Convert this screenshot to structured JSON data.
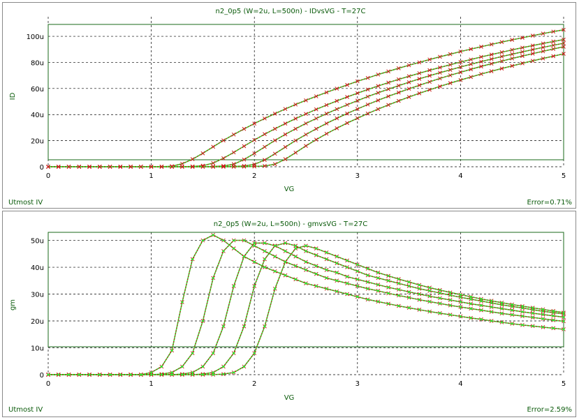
{
  "footer_model": "Utmost IV",
  "chart_data": [
    {
      "type": "line",
      "title": "n2_0p5 (W=2u, L=500n) - IDvsVG - T=27C",
      "xlabel": "VG",
      "ylabel": "ID",
      "xlim": [
        0,
        5
      ],
      "ylim": [
        0,
        0.000115
      ],
      "xticks": [
        0,
        1,
        2,
        3,
        4,
        5
      ],
      "xtick_labels": [
        "0",
        "1",
        "2",
        "3",
        "4",
        "5"
      ],
      "yticks": [
        0,
        2e-05,
        4e-05,
        6e-05,
        8e-05,
        0.0001
      ],
      "ytick_labels": [
        "0",
        "20u",
        "40u",
        "60u",
        "80u",
        "100u"
      ],
      "grid": true,
      "error_text": "Error=0.71%",
      "x": [
        0,
        0.1,
        0.2,
        0.3,
        0.4,
        0.5,
        0.6,
        0.7,
        0.8,
        0.9,
        1.0,
        1.1,
        1.2,
        1.3,
        1.4,
        1.5,
        1.6,
        1.7,
        1.8,
        1.9,
        2.0,
        2.1,
        2.2,
        2.3,
        2.4,
        2.5,
        2.6,
        2.7,
        2.8,
        2.9,
        3.0,
        3.1,
        3.2,
        3.3,
        3.4,
        3.5,
        3.6,
        3.7,
        3.8,
        3.9,
        4.0,
        4.1,
        4.2,
        4.3,
        4.4,
        4.5,
        4.6,
        4.7,
        4.8,
        4.9,
        5.0
      ],
      "series": [
        {
          "values": [
            0,
            0,
            0,
            0,
            0,
            0,
            0,
            0,
            0,
            0,
            0,
            8e-08,
            4e-07,
            2.3e-06,
            5.8e-06,
            1.03e-05,
            1.53e-05,
            2.02e-05,
            2.47e-05,
            2.9e-05,
            3.31e-05,
            3.7e-05,
            4.07e-05,
            4.43e-05,
            4.77e-05,
            5.09e-05,
            5.4e-05,
            5.7e-05,
            5.99e-05,
            6.27e-05,
            6.55e-05,
            6.81e-05,
            7.07e-05,
            7.31e-05,
            7.55e-05,
            7.78e-05,
            8e-05,
            8.22e-05,
            8.43e-05,
            8.63e-05,
            8.83e-05,
            9.02e-05,
            9.2e-05,
            9.38e-05,
            9.56e-05,
            9.73e-05,
            9.89e-05,
            0.0001005,
            0.0001021,
            0.0001036,
            0.000105
          ]
        },
        {
          "values": [
            0,
            0,
            0,
            0,
            0,
            0,
            0,
            0,
            0,
            0,
            0,
            0,
            0,
            5e-08,
            2e-07,
            8e-07,
            2.8e-06,
            6.5e-06,
            1.1e-05,
            1.58e-05,
            2.05e-05,
            2.5e-05,
            2.91e-05,
            3.31e-05,
            3.69e-05,
            4.05e-05,
            4.4e-05,
            4.73e-05,
            5.05e-05,
            5.35e-05,
            5.64e-05,
            5.92e-05,
            6.19e-05,
            6.45e-05,
            6.7e-05,
            6.94e-05,
            7.17e-05,
            7.4e-05,
            7.61e-05,
            7.82e-05,
            8.03e-05,
            8.22e-05,
            8.42e-05,
            8.6e-05,
            8.78e-05,
            8.96e-05,
            9.13e-05,
            9.29e-05,
            9.45e-05,
            9.6e-05,
            9.75e-05
          ]
        },
        {
          "values": [
            0,
            0,
            0,
            0,
            0,
            0,
            0,
            0,
            0,
            0,
            0,
            0,
            0,
            0,
            0,
            5e-08,
            2e-07,
            6e-07,
            2e-06,
            5.5e-06,
            1.02e-05,
            1.52e-05,
            2.02e-05,
            2.48e-05,
            2.91e-05,
            3.32e-05,
            3.7e-05,
            4.07e-05,
            4.42e-05,
            4.75e-05,
            5.07e-05,
            5.38e-05,
            5.67e-05,
            5.95e-05,
            6.22e-05,
            6.48e-05,
            6.74e-05,
            6.98e-05,
            7.21e-05,
            7.43e-05,
            7.65e-05,
            7.86e-05,
            8.06e-05,
            8.26e-05,
            8.45e-05,
            8.63e-05,
            8.81e-05,
            8.98e-05,
            9.15e-05,
            9.31e-05,
            9.47e-05
          ]
        },
        {
          "values": [
            0,
            0,
            0,
            0,
            0,
            0,
            0,
            0,
            0,
            0,
            0,
            0,
            0,
            0,
            0,
            0,
            0,
            5e-08,
            2e-07,
            6e-07,
            1.8e-06,
            5.2e-06,
            1e-05,
            1.51e-05,
            2.01e-05,
            2.47e-05,
            2.91e-05,
            3.32e-05,
            3.71e-05,
            4.08e-05,
            4.43e-05,
            4.77e-05,
            5.09e-05,
            5.4e-05,
            5.69e-05,
            5.98e-05,
            6.25e-05,
            6.51e-05,
            6.77e-05,
            7.01e-05,
            7.24e-05,
            7.47e-05,
            7.69e-05,
            7.9e-05,
            8.1e-05,
            8.3e-05,
            8.49e-05,
            8.67e-05,
            8.85e-05,
            9.03e-05,
            9.2e-05
          ]
        },
        {
          "values": [
            0,
            0,
            0,
            0,
            0,
            0,
            0,
            0,
            0,
            0,
            0,
            0,
            0,
            0,
            0,
            0,
            0,
            0,
            0,
            5e-08,
            2e-07,
            6e-07,
            2e-06,
            5.8e-06,
            1.08e-05,
            1.6e-05,
            2.08e-05,
            2.53e-05,
            2.95e-05,
            3.35e-05,
            3.72e-05,
            4.08e-05,
            4.42e-05,
            4.74e-05,
            5.05e-05,
            5.35e-05,
            5.63e-05,
            5.9e-05,
            6.16e-05,
            6.41e-05,
            6.65e-05,
            6.88e-05,
            7.11e-05,
            7.32e-05,
            7.53e-05,
            7.73e-05,
            7.93e-05,
            8.12e-05,
            8.3e-05,
            8.48e-05,
            8.66e-05
          ]
        }
      ]
    },
    {
      "type": "line",
      "title": "n2_0p5 (W=2u, L=500n) - gmvsVG - T=27C",
      "xlabel": "VG",
      "ylabel": "gm",
      "xlim": [
        0,
        5
      ],
      "ylim": [
        0,
        5.3e-05
      ],
      "xticks": [
        0,
        1,
        2,
        3,
        4,
        5
      ],
      "xtick_labels": [
        "0",
        "1",
        "2",
        "3",
        "4",
        "5"
      ],
      "yticks": [
        0,
        1e-05,
        2e-05,
        3e-05,
        4e-05,
        5e-05
      ],
      "ytick_labels": [
        "0",
        "10u",
        "20u",
        "30u",
        "40u",
        "50u"
      ],
      "grid": true,
      "error_text": "Error=2.59%",
      "x": [
        0,
        0.1,
        0.2,
        0.3,
        0.4,
        0.5,
        0.6,
        0.7,
        0.8,
        0.9,
        1.0,
        1.1,
        1.2,
        1.3,
        1.4,
        1.5,
        1.6,
        1.7,
        1.8,
        1.9,
        2.0,
        2.1,
        2.2,
        2.3,
        2.4,
        2.5,
        2.6,
        2.7,
        2.8,
        2.9,
        3.0,
        3.1,
        3.2,
        3.3,
        3.4,
        3.5,
        3.6,
        3.7,
        3.8,
        3.9,
        4.0,
        4.1,
        4.2,
        4.3,
        4.4,
        4.5,
        4.6,
        4.7,
        4.8,
        4.9,
        5.0
      ],
      "series": [
        {
          "values": [
            0,
            0,
            0,
            0,
            0,
            0,
            0,
            0,
            0,
            0,
            8e-07,
            3e-06,
            9e-06,
            2.7e-05,
            4.3e-05,
            5e-05,
            5.2e-05,
            5e-05,
            4.7e-05,
            4.4e-05,
            4.2e-05,
            4e-05,
            3.85e-05,
            3.7e-05,
            3.55e-05,
            3.4e-05,
            3.3e-05,
            3.2e-05,
            3.1e-05,
            3e-05,
            2.9e-05,
            2.8e-05,
            2.72e-05,
            2.64e-05,
            2.56e-05,
            2.49e-05,
            2.42e-05,
            2.35e-05,
            2.29e-05,
            2.23e-05,
            2.17e-05,
            2.11e-05,
            2.06e-05,
            2e-05,
            1.95e-05,
            1.9e-05,
            1.85e-05,
            1.81e-05,
            1.77e-05,
            1.73e-05,
            1.69e-05
          ]
        },
        {
          "values": [
            0,
            0,
            0,
            0,
            0,
            0,
            0,
            0,
            0,
            0,
            0,
            2e-07,
            8e-07,
            3e-06,
            8e-06,
            2e-05,
            3.6e-05,
            4.6e-05,
            5e-05,
            5e-05,
            4.8e-05,
            4.6e-05,
            4.4e-05,
            4.2e-05,
            4.05e-05,
            3.9e-05,
            3.75e-05,
            3.6e-05,
            3.5e-05,
            3.4e-05,
            3.3e-05,
            3.2e-05,
            3.12e-05,
            3.03e-05,
            2.95e-05,
            2.87e-05,
            2.79e-05,
            2.72e-05,
            2.65e-05,
            2.58e-05,
            2.52e-05,
            2.46e-05,
            2.4e-05,
            2.34e-05,
            2.28e-05,
            2.23e-05,
            2.18e-05,
            2.13e-05,
            2.08e-05,
            2.03e-05,
            1.99e-05
          ]
        },
        {
          "values": [
            0,
            0,
            0,
            0,
            0,
            0,
            0,
            0,
            0,
            0,
            0,
            0,
            0,
            2e-07,
            8e-07,
            3e-06,
            8e-06,
            1.8e-05,
            3.3e-05,
            4.4e-05,
            4.9e-05,
            4.9e-05,
            4.8e-05,
            4.6e-05,
            4.4e-05,
            4.2e-05,
            4.05e-05,
            3.9e-05,
            3.8e-05,
            3.65e-05,
            3.55e-05,
            3.45e-05,
            3.35e-05,
            3.25e-05,
            3.17e-05,
            3.08e-05,
            3e-05,
            2.92e-05,
            2.85e-05,
            2.78e-05,
            2.71e-05,
            2.64e-05,
            2.58e-05,
            2.52e-05,
            2.46e-05,
            2.4e-05,
            2.34e-05,
            2.29e-05,
            2.24e-05,
            2.19e-05,
            2.14e-05
          ]
        },
        {
          "values": [
            0,
            0,
            0,
            0,
            0,
            0,
            0,
            0,
            0,
            0,
            0,
            0,
            0,
            0,
            0,
            2e-07,
            8e-07,
            3e-06,
            8e-06,
            1.8e-05,
            3.3e-05,
            4.3e-05,
            4.8e-05,
            4.9e-05,
            4.8e-05,
            4.6e-05,
            4.45e-05,
            4.3e-05,
            4.15e-05,
            4e-05,
            3.85e-05,
            3.7e-05,
            3.6e-05,
            3.5e-05,
            3.4e-05,
            3.3e-05,
            3.2e-05,
            3.12e-05,
            3.04e-05,
            2.96e-05,
            2.88e-05,
            2.81e-05,
            2.74e-05,
            2.67e-05,
            2.6e-05,
            2.54e-05,
            2.48e-05,
            2.42e-05,
            2.36e-05,
            2.31e-05,
            2.26e-05
          ]
        },
        {
          "values": [
            0,
            0,
            0,
            0,
            0,
            0,
            0,
            0,
            0,
            0,
            0,
            0,
            0,
            0,
            0,
            0,
            0,
            2e-07,
            8e-07,
            3e-06,
            8e-06,
            1.8e-05,
            3.2e-05,
            4.2e-05,
            4.7e-05,
            4.8e-05,
            4.7e-05,
            4.55e-05,
            4.4e-05,
            4.25e-05,
            4.1e-05,
            3.95e-05,
            3.8e-05,
            3.68e-05,
            3.56e-05,
            3.45e-05,
            3.34e-05,
            3.24e-05,
            3.15e-05,
            3.06e-05,
            2.98e-05,
            2.9e-05,
            2.82e-05,
            2.75e-05,
            2.68e-05,
            2.61e-05,
            2.55e-05,
            2.49e-05,
            2.43e-05,
            2.37e-05,
            2.31e-05
          ]
        }
      ]
    }
  ]
}
